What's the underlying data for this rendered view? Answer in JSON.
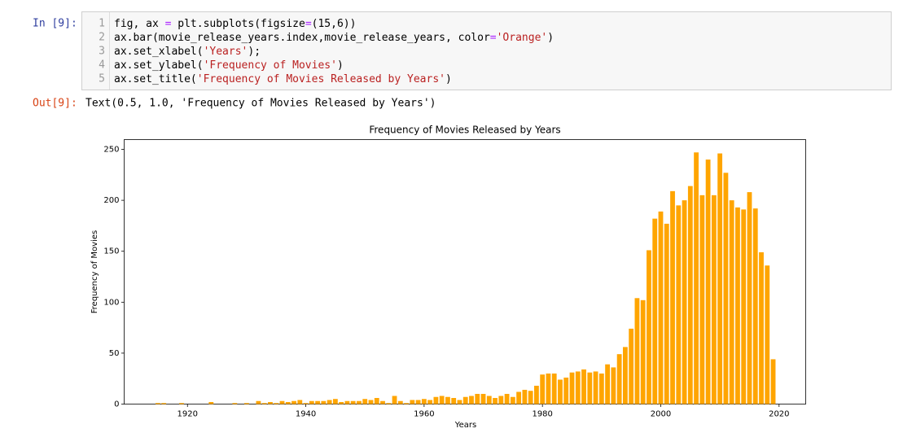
{
  "cell": {
    "in_prompt": "In [9]:",
    "line_numbers": [
      1,
      2,
      3,
      4,
      5
    ],
    "code": [
      [
        {
          "text": "fig, ax ",
          "color": "#000000"
        },
        {
          "text": "=",
          "color": "#aa22ff"
        },
        {
          "text": " plt.subplots(figsize",
          "color": "#000000"
        },
        {
          "text": "=",
          "color": "#aa22ff"
        },
        {
          "text": "(15,6))",
          "color": "#000000"
        }
      ],
      [
        {
          "text": "ax.bar(movie_release_years.index,movie_release_years, color",
          "color": "#000000"
        },
        {
          "text": "=",
          "color": "#aa22ff"
        },
        {
          "text": "'Orange'",
          "color": "#ba2121"
        },
        {
          "text": ")",
          "color": "#000000"
        }
      ],
      [
        {
          "text": "ax.set_xlabel(",
          "color": "#000000"
        },
        {
          "text": "'Years'",
          "color": "#ba2121"
        },
        {
          "text": ");",
          "color": "#000000"
        }
      ],
      [
        {
          "text": "ax.set_ylabel(",
          "color": "#000000"
        },
        {
          "text": "'Frequency of Movies'",
          "color": "#ba2121"
        },
        {
          "text": ")",
          "color": "#000000"
        }
      ],
      [
        {
          "text": "ax.set_title(",
          "color": "#000000"
        },
        {
          "text": "'Frequency of Movies Released by Years'",
          "color": "#ba2121"
        },
        {
          "text": ")",
          "color": "#000000"
        }
      ]
    ],
    "out_prompt": "Out[9]:",
    "output_text": "Text(0.5, 1.0, 'Frequency of Movies Released by Years')"
  },
  "chart_data": {
    "type": "bar",
    "title": "Frequency of Movies Released by Years",
    "x_label": "Years",
    "y_label": "Frequency of Movies",
    "color": "#ffa500",
    "x": [
      1915,
      1916,
      1919,
      1924,
      1928,
      1930,
      1932,
      1933,
      1934,
      1935,
      1936,
      1937,
      1938,
      1939,
      1940,
      1941,
      1942,
      1943,
      1944,
      1945,
      1946,
      1947,
      1948,
      1949,
      1950,
      1951,
      1952,
      1953,
      1954,
      1955,
      1956,
      1957,
      1958,
      1959,
      1960,
      1961,
      1962,
      1963,
      1964,
      1965,
      1966,
      1967,
      1968,
      1969,
      1970,
      1971,
      1972,
      1973,
      1974,
      1975,
      1976,
      1977,
      1978,
      1979,
      1980,
      1981,
      1982,
      1983,
      1984,
      1985,
      1986,
      1987,
      1988,
      1989,
      1990,
      1991,
      1992,
      1993,
      1994,
      1995,
      1996,
      1997,
      1998,
      1999,
      2000,
      2001,
      2002,
      2003,
      2004,
      2005,
      2006,
      2007,
      2008,
      2009,
      2010,
      2011,
      2012,
      2013,
      2014,
      2015,
      2016,
      2017,
      2018,
      2019
    ],
    "values": [
      1,
      1,
      1,
      2,
      1,
      1,
      3,
      1,
      2,
      1,
      3,
      2,
      3,
      4,
      1,
      3,
      3,
      3,
      4,
      5,
      2,
      3,
      3,
      3,
      5,
      4,
      6,
      3,
      1,
      8,
      3,
      1,
      4,
      4,
      5,
      4,
      7,
      8,
      7,
      6,
      4,
      7,
      8,
      10,
      10,
      8,
      6,
      8,
      10,
      7,
      12,
      14,
      13,
      18,
      29,
      30,
      30,
      24,
      26,
      31,
      32,
      34,
      31,
      32,
      30,
      39,
      36,
      49,
      56,
      74,
      104,
      102,
      151,
      182,
      189,
      177,
      209,
      195,
      200,
      214,
      247,
      205,
      240,
      205,
      246,
      227,
      200,
      193,
      191,
      208,
      192,
      149,
      136,
      44
    ],
    "xlim": [
      1909.3,
      2024.5
    ],
    "ylim": [
      0,
      259.6
    ],
    "xticks": [
      1920,
      1940,
      1960,
      1980,
      2000,
      2020
    ],
    "yticks": [
      0,
      50,
      100,
      150,
      200,
      250
    ]
  }
}
